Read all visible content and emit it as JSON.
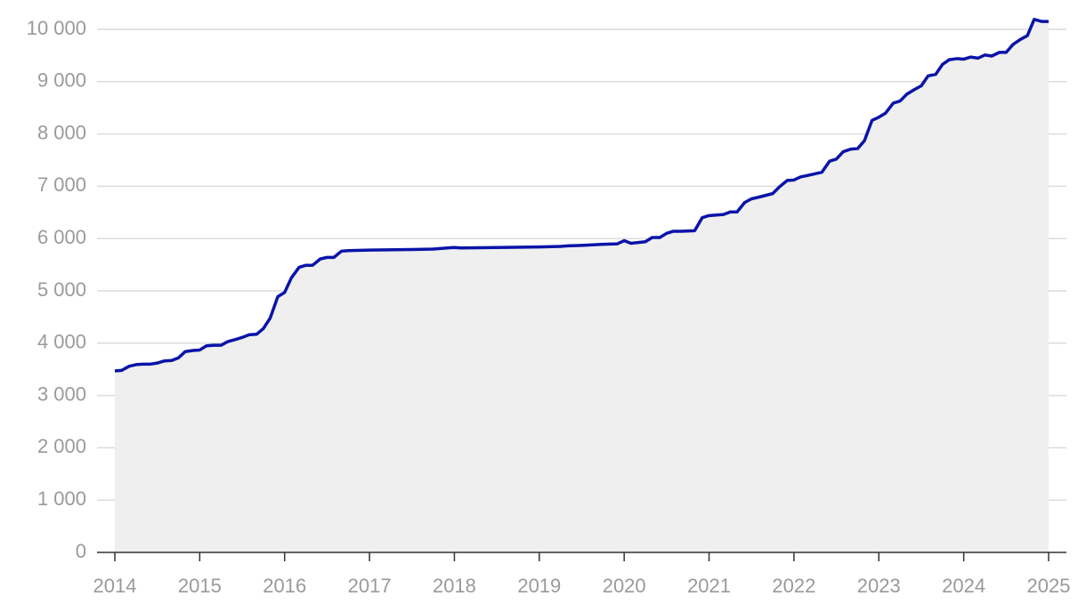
{
  "chart_data": {
    "type": "line",
    "x": [
      2014.0,
      2014.08,
      2014.17,
      2014.25,
      2014.33,
      2014.42,
      2014.5,
      2014.58,
      2014.67,
      2014.75,
      2014.83,
      2014.92,
      2015.0,
      2015.08,
      2015.17,
      2015.25,
      2015.33,
      2015.42,
      2015.5,
      2015.58,
      2015.67,
      2015.75,
      2015.83,
      2015.92,
      2016.0,
      2016.08,
      2016.17,
      2016.25,
      2016.33,
      2016.42,
      2016.5,
      2016.58,
      2016.67,
      2016.75,
      2017.0,
      2017.5,
      2017.75,
      2018.0,
      2018.08,
      2018.5,
      2019.0,
      2019.25,
      2019.33,
      2019.5,
      2019.75,
      2019.92,
      2020.0,
      2020.08,
      2020.25,
      2020.33,
      2020.42,
      2020.5,
      2020.58,
      2020.67,
      2020.83,
      2020.92,
      2021.0,
      2021.17,
      2021.25,
      2021.33,
      2021.42,
      2021.5,
      2021.58,
      2021.75,
      2021.83,
      2021.92,
      2022.0,
      2022.08,
      2022.17,
      2022.33,
      2022.42,
      2022.5,
      2022.58,
      2022.67,
      2022.75,
      2022.83,
      2022.92,
      2023.0,
      2023.08,
      2023.17,
      2023.25,
      2023.33,
      2023.42,
      2023.5,
      2023.58,
      2023.67,
      2023.75,
      2023.83,
      2023.92,
      2024.0,
      2024.08,
      2024.17,
      2024.25,
      2024.33,
      2024.42,
      2024.5,
      2024.58,
      2024.67,
      2024.75,
      2024.83,
      2024.92,
      2025.0
    ],
    "series": [
      {
        "color": "#0a14a8",
        "values": [
          3470,
          3480,
          3560,
          3590,
          3600,
          3600,
          3620,
          3660,
          3670,
          3720,
          3840,
          3860,
          3870,
          3950,
          3960,
          3960,
          4030,
          4070,
          4110,
          4160,
          4170,
          4280,
          4480,
          4890,
          4970,
          5250,
          5450,
          5490,
          5490,
          5610,
          5640,
          5640,
          5760,
          5770,
          5780,
          5790,
          5800,
          5830,
          5820,
          5830,
          5840,
          5850,
          5860,
          5870,
          5890,
          5900,
          5960,
          5910,
          5940,
          6020,
          6020,
          6100,
          6140,
          6140,
          6150,
          6400,
          6440,
          6460,
          6510,
          6510,
          6690,
          6760,
          6790,
          6860,
          6990,
          7110,
          7120,
          7180,
          7210,
          7270,
          7480,
          7520,
          7660,
          7710,
          7720,
          7870,
          8260,
          8320,
          8400,
          8590,
          8630,
          8760,
          8850,
          8920,
          9110,
          9140,
          9330,
          9420,
          9440,
          9430,
          9470,
          9450,
          9510,
          9490,
          9560,
          9560,
          9710,
          9810,
          9880,
          10190,
          10150,
          10150
        ]
      }
    ],
    "area_color": "#efefef",
    "xlim": [
      2014,
      2025
    ],
    "xticks": [
      2014,
      2015,
      2016,
      2017,
      2018,
      2019,
      2020,
      2021,
      2022,
      2023,
      2024,
      2025
    ],
    "ylim": [
      0,
      10000
    ],
    "yticks": [
      0,
      {
        "value": 1000,
        "label": "1 000"
      },
      {
        "value": 2000,
        "label": "2 000"
      },
      {
        "value": 3000,
        "label": "3 000"
      },
      {
        "value": 4000,
        "label": "4 000"
      },
      {
        "value": 5000,
        "label": "5 000"
      },
      {
        "value": 6000,
        "label": "6 000"
      },
      {
        "value": 7000,
        "label": "7 000"
      },
      {
        "value": 8000,
        "label": "8 000"
      },
      {
        "value": 9000,
        "label": "9 000"
      },
      {
        "value": 10000,
        "label": "10 000"
      }
    ],
    "grid": true
  }
}
